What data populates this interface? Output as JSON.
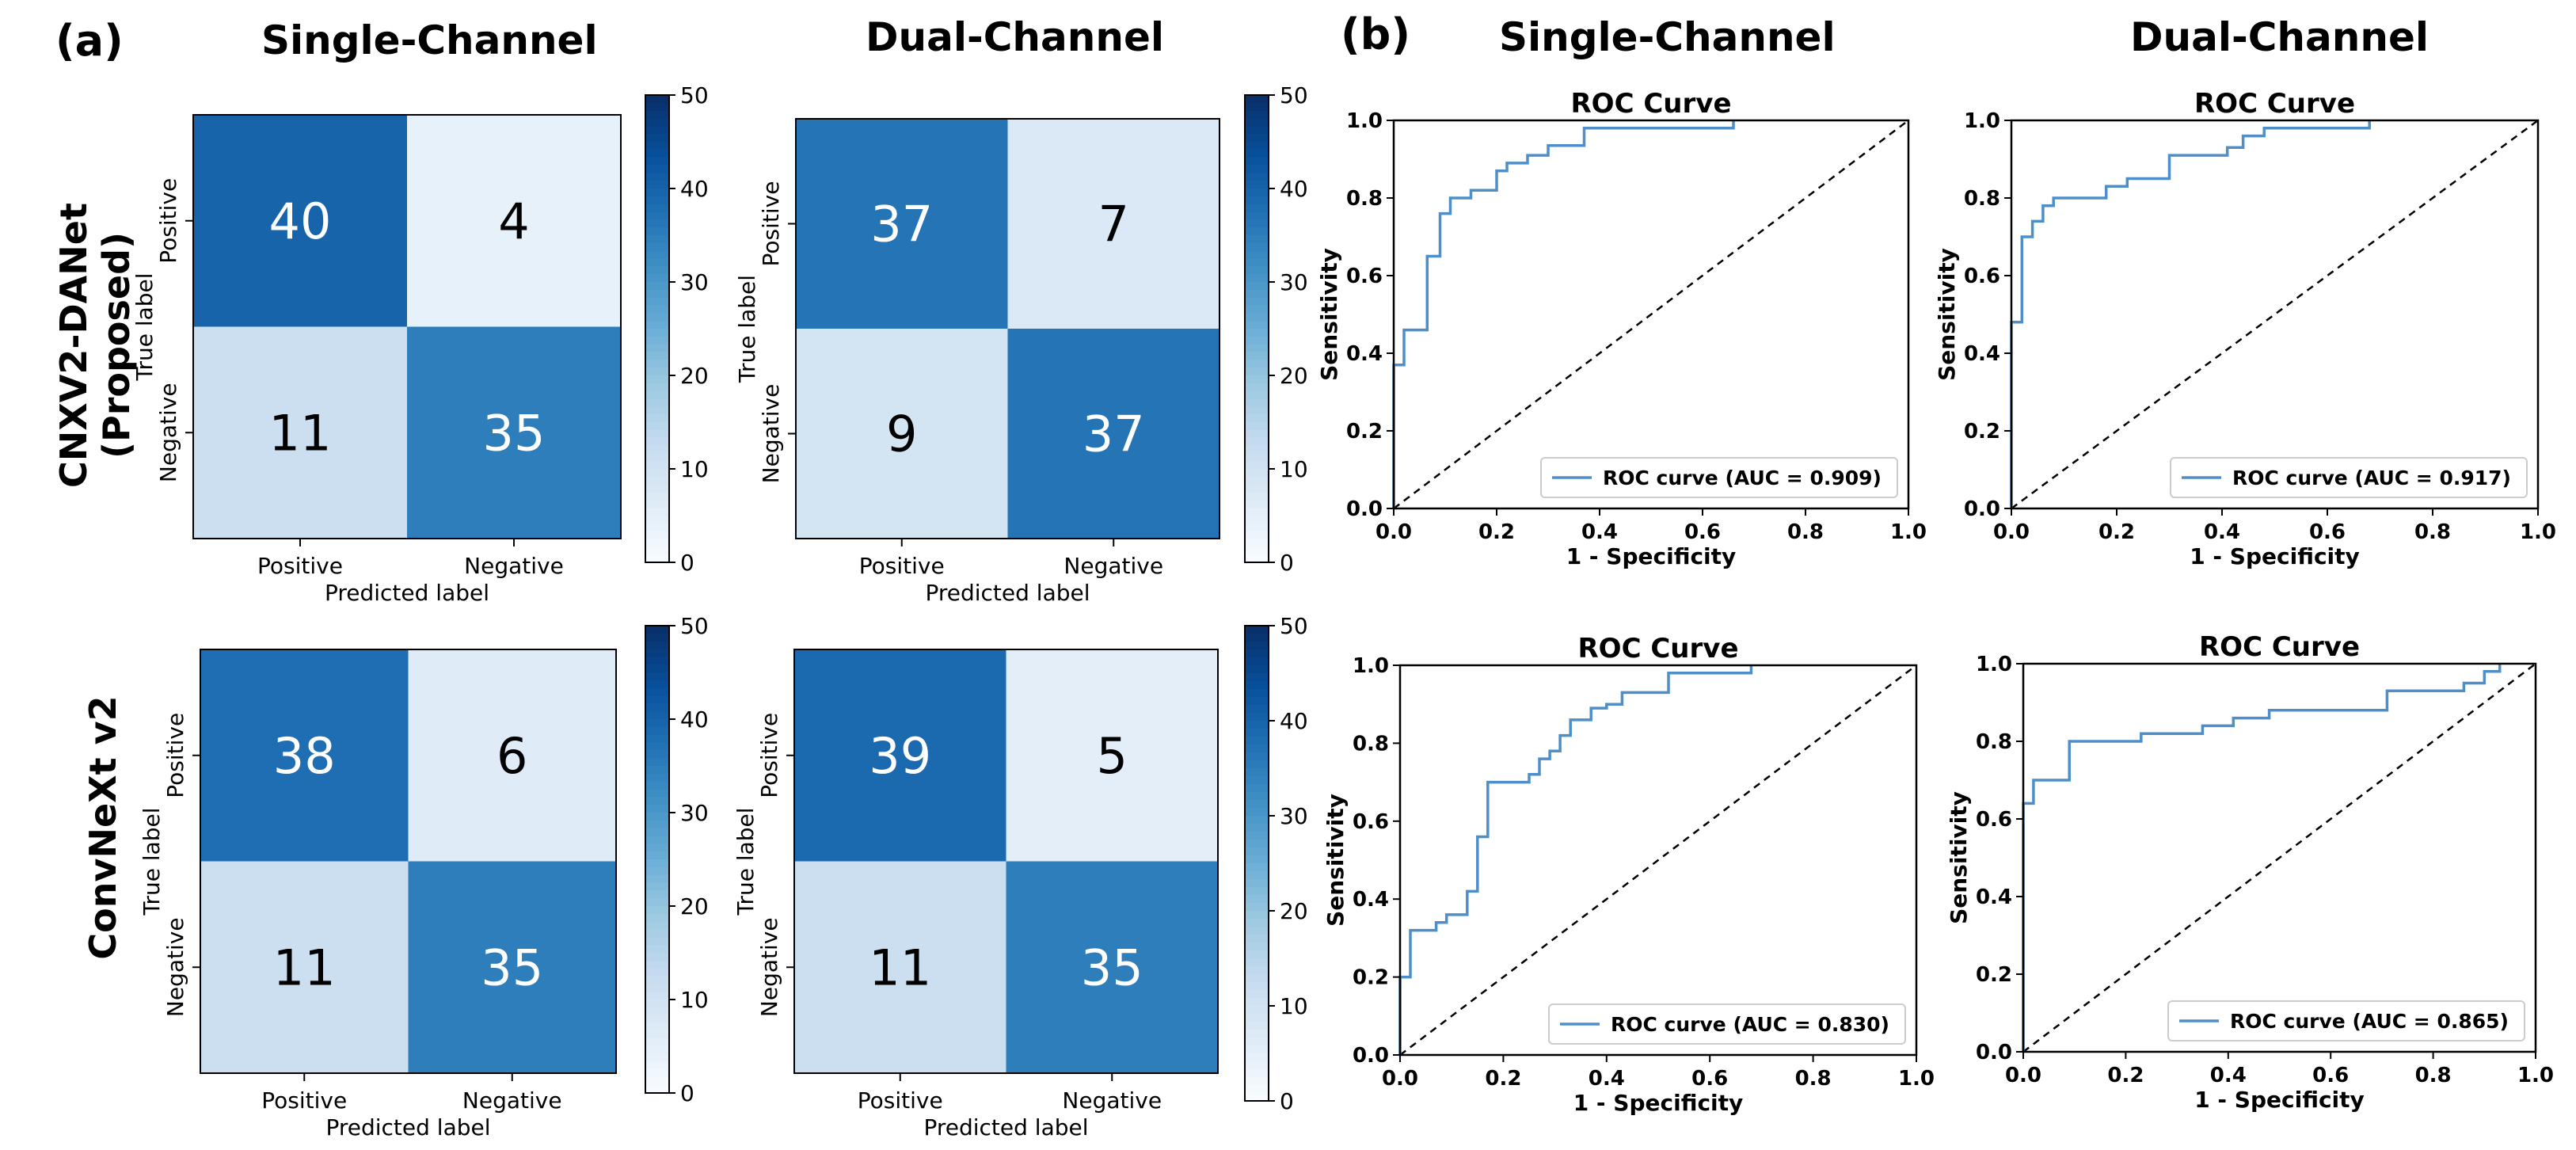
{
  "panel_labels": [
    "(a)",
    "(b)"
  ],
  "column_headers": {
    "cm_single": "Single-Channel",
    "cm_dual": "Dual-Channel",
    "roc_single": "Single-Channel",
    "roc_dual": "Dual-Channel"
  },
  "row_labels": {
    "row1_line1": "CNXV2-DANet",
    "row1_line2": "(Proposed)",
    "row2": "ConvNeXt v2"
  },
  "colors": {
    "roc_line": "#4f8fc9",
    "diagonal": "#000000",
    "cmap_low": "#f7fbff",
    "cmap_high": "#08306b"
  },
  "chart_data": [
    {
      "id": "cm_r1_single",
      "type": "heatmap",
      "xlabel": "Predicted label",
      "ylabel": "True label",
      "x_categories": [
        "Positive",
        "Negative"
      ],
      "y_categories": [
        "Positive",
        "Negative"
      ],
      "values": [
        [
          40,
          4
        ],
        [
          11,
          35
        ]
      ],
      "colorbar": {
        "range": [
          0,
          50
        ],
        "ticks": [
          "0",
          "10",
          "20",
          "30",
          "40",
          "50"
        ]
      }
    },
    {
      "id": "cm_r1_dual",
      "type": "heatmap",
      "xlabel": "Predicted label",
      "ylabel": "True label",
      "x_categories": [
        "Positive",
        "Negative"
      ],
      "y_categories": [
        "Positive",
        "Negative"
      ],
      "values": [
        [
          37,
          7
        ],
        [
          9,
          37
        ]
      ],
      "colorbar": {
        "range": [
          0,
          50
        ],
        "ticks": [
          "0",
          "10",
          "20",
          "30",
          "40",
          "50"
        ]
      }
    },
    {
      "id": "cm_r2_single",
      "type": "heatmap",
      "xlabel": "Predicted label",
      "ylabel": "True label",
      "x_categories": [
        "Positive",
        "Negative"
      ],
      "y_categories": [
        "Positive",
        "Negative"
      ],
      "values": [
        [
          38,
          6
        ],
        [
          11,
          35
        ]
      ],
      "colorbar": {
        "range": [
          0,
          50
        ],
        "ticks": [
          "0",
          "10",
          "20",
          "30",
          "40",
          "50"
        ]
      }
    },
    {
      "id": "cm_r2_dual",
      "type": "heatmap",
      "xlabel": "Predicted label",
      "ylabel": "True label",
      "x_categories": [
        "Positive",
        "Negative"
      ],
      "y_categories": [
        "Positive",
        "Negative"
      ],
      "values": [
        [
          39,
          5
        ],
        [
          11,
          35
        ]
      ],
      "colorbar": {
        "range": [
          0,
          50
        ],
        "ticks": [
          "0",
          "10",
          "20",
          "30",
          "40",
          "50"
        ]
      }
    },
    {
      "id": "roc_r1_single",
      "type": "line",
      "title": "ROC Curve",
      "xlabel": "1 - Specificity",
      "ylabel": "Sensitivity",
      "xlim": [
        0,
        1
      ],
      "ylim": [
        0,
        1
      ],
      "xticks": [
        "0.0",
        "0.2",
        "0.4",
        "0.6",
        "0.8",
        "1.0"
      ],
      "yticks": [
        "0.0",
        "0.2",
        "0.4",
        "0.6",
        "0.8",
        "1.0"
      ],
      "legend": "lower right",
      "series": [
        {
          "name": "ROC curve (AUC = 0.909)",
          "x": [
            0,
            0,
            0.02,
            0.02,
            0.065,
            0.065,
            0.09,
            0.09,
            0.11,
            0.11,
            0.15,
            0.15,
            0.2,
            0.2,
            0.22,
            0.22,
            0.26,
            0.26,
            0.3,
            0.3,
            0.37,
            0.37,
            0.66,
            0.66
          ],
          "y": [
            0,
            0.37,
            0.37,
            0.46,
            0.46,
            0.65,
            0.65,
            0.76,
            0.76,
            0.8,
            0.8,
            0.82,
            0.82,
            0.87,
            0.87,
            0.89,
            0.89,
            0.91,
            0.91,
            0.935,
            0.935,
            0.98,
            0.98,
            1.0
          ]
        }
      ]
    },
    {
      "id": "roc_r1_dual",
      "type": "line",
      "title": "ROC Curve",
      "xlabel": "1 - Specificity",
      "ylabel": "Sensitivity",
      "xlim": [
        0,
        1
      ],
      "ylim": [
        0,
        1
      ],
      "xticks": [
        "0.0",
        "0.2",
        "0.4",
        "0.6",
        "0.8",
        "1.0"
      ],
      "yticks": [
        "0.0",
        "0.2",
        "0.4",
        "0.6",
        "0.8",
        "1.0"
      ],
      "legend": "lower right",
      "series": [
        {
          "name": "ROC curve (AUC = 0.917)",
          "x": [
            0,
            0,
            0.02,
            0.02,
            0.04,
            0.04,
            0.06,
            0.06,
            0.08,
            0.08,
            0.18,
            0.18,
            0.22,
            0.22,
            0.3,
            0.3,
            0.41,
            0.41,
            0.44,
            0.44,
            0.48,
            0.48,
            0.68,
            0.68
          ],
          "y": [
            0,
            0.48,
            0.48,
            0.7,
            0.7,
            0.74,
            0.74,
            0.78,
            0.78,
            0.8,
            0.8,
            0.83,
            0.83,
            0.85,
            0.85,
            0.91,
            0.91,
            0.93,
            0.93,
            0.96,
            0.96,
            0.98,
            0.98,
            1.0
          ]
        }
      ]
    },
    {
      "id": "roc_r2_single",
      "type": "line",
      "title": "ROC Curve",
      "xlabel": "1 - Specificity",
      "ylabel": "Sensitivity",
      "xlim": [
        0,
        1
      ],
      "ylim": [
        0,
        1
      ],
      "xticks": [
        "0.0",
        "0.2",
        "0.4",
        "0.6",
        "0.8",
        "1.0"
      ],
      "yticks": [
        "0.0",
        "0.2",
        "0.4",
        "0.6",
        "0.8",
        "1.0"
      ],
      "legend": "lower right",
      "series": [
        {
          "name": "ROC curve (AUC = 0.830)",
          "x": [
            0,
            0,
            0.02,
            0.02,
            0.07,
            0.07,
            0.09,
            0.09,
            0.13,
            0.13,
            0.15,
            0.15,
            0.17,
            0.17,
            0.25,
            0.25,
            0.27,
            0.27,
            0.29,
            0.29,
            0.31,
            0.31,
            0.33,
            0.33,
            0.37,
            0.37,
            0.4,
            0.4,
            0.43,
            0.43,
            0.52,
            0.52,
            0.68,
            0.68
          ],
          "y": [
            0,
            0.2,
            0.2,
            0.32,
            0.32,
            0.34,
            0.34,
            0.36,
            0.36,
            0.42,
            0.42,
            0.56,
            0.56,
            0.7,
            0.7,
            0.72,
            0.72,
            0.76,
            0.76,
            0.78,
            0.78,
            0.82,
            0.82,
            0.86,
            0.86,
            0.89,
            0.89,
            0.9,
            0.9,
            0.93,
            0.93,
            0.98,
            0.98,
            1.0
          ]
        }
      ]
    },
    {
      "id": "roc_r2_dual",
      "type": "line",
      "title": "ROC Curve",
      "xlabel": "1 - Specificity",
      "ylabel": "Sensitivity",
      "xlim": [
        0,
        1
      ],
      "ylim": [
        0,
        1
      ],
      "xticks": [
        "0.0",
        "0.2",
        "0.4",
        "0.6",
        "0.8",
        "1.0"
      ],
      "yticks": [
        "0.0",
        "0.2",
        "0.4",
        "0.6",
        "0.8",
        "1.0"
      ],
      "legend": "lower right",
      "series": [
        {
          "name": "ROC curve (AUC = 0.865)",
          "x": [
            0,
            0,
            0.02,
            0.02,
            0.09,
            0.09,
            0.23,
            0.23,
            0.35,
            0.35,
            0.41,
            0.41,
            0.48,
            0.48,
            0.71,
            0.71,
            0.86,
            0.86,
            0.9,
            0.9,
            0.93,
            0.93
          ],
          "y": [
            0,
            0.64,
            0.64,
            0.7,
            0.7,
            0.8,
            0.8,
            0.82,
            0.82,
            0.84,
            0.84,
            0.86,
            0.86,
            0.88,
            0.88,
            0.93,
            0.93,
            0.95,
            0.95,
            0.98,
            0.98,
            1.0
          ]
        }
      ]
    }
  ]
}
